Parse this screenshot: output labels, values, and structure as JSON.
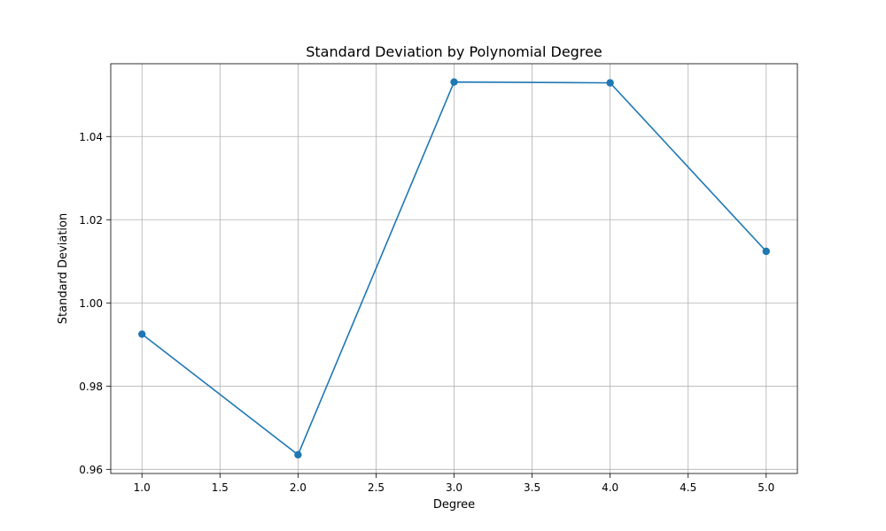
{
  "chart_data": {
    "type": "line",
    "title": "Standard Deviation by Polynomial Degree",
    "xlabel": "Degree",
    "ylabel": "Standard Deviation",
    "xlim": [
      0.8,
      5.2
    ],
    "ylim": [
      0.959,
      1.0575
    ],
    "xticks": [
      1.0,
      1.5,
      2.0,
      2.5,
      3.0,
      3.5,
      4.0,
      4.5,
      5.0
    ],
    "xtick_labels": [
      "1.0",
      "1.5",
      "2.0",
      "2.5",
      "3.0",
      "3.5",
      "4.0",
      "4.5",
      "5.0"
    ],
    "yticks": [
      0.96,
      0.98,
      1.0,
      1.02,
      1.04
    ],
    "ytick_labels": [
      "0.96",
      "0.98",
      "1.00",
      "1.02",
      "1.04"
    ],
    "grid": true,
    "series": [
      {
        "x": [
          1,
          2,
          3,
          4,
          5
        ],
        "values": [
          0.9925,
          0.9635,
          1.0531,
          1.0529,
          1.0124
        ],
        "color": "#1f77b4",
        "marker": "circle"
      }
    ]
  }
}
